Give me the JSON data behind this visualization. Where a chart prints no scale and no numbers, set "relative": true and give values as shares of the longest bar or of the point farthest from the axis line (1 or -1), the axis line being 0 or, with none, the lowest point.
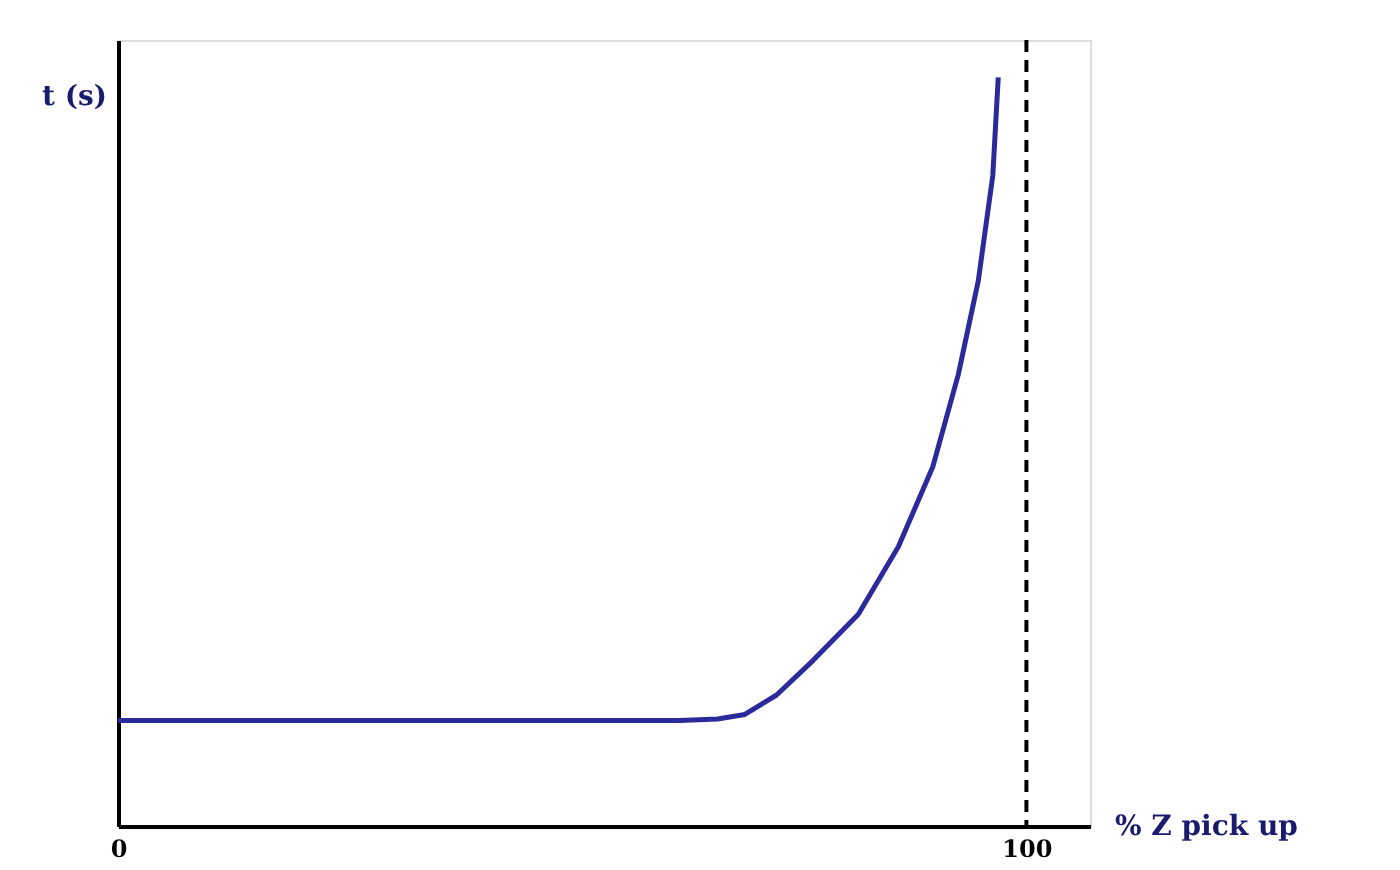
{
  "chart_data": {
    "type": "line",
    "relative": true,
    "xlabel": "% Z pick up",
    "ylabel": "t (s)",
    "color": "#2a2a9a",
    "line_style": "solid",
    "marker": "none",
    "x": [
      0,
      20,
      40,
      61.8,
      66,
      69.0,
      72.5,
      76.5,
      81.5,
      85.9,
      89.7,
      92.5,
      94.7,
      96.3,
      96.9
    ],
    "values": [
      0.141,
      0.141,
      0.141,
      0.141,
      0.143,
      0.149,
      0.175,
      0.221,
      0.283,
      0.373,
      0.48,
      0.603,
      0.728,
      0.869,
      1.0
    ],
    "xlim": [
      0,
      107
    ],
    "xticks": [
      0,
      100
    ],
    "ref_lines": [
      {
        "axis": "x",
        "value": 100,
        "color": "#000000",
        "line_style": "dashed"
      }
    ]
  }
}
